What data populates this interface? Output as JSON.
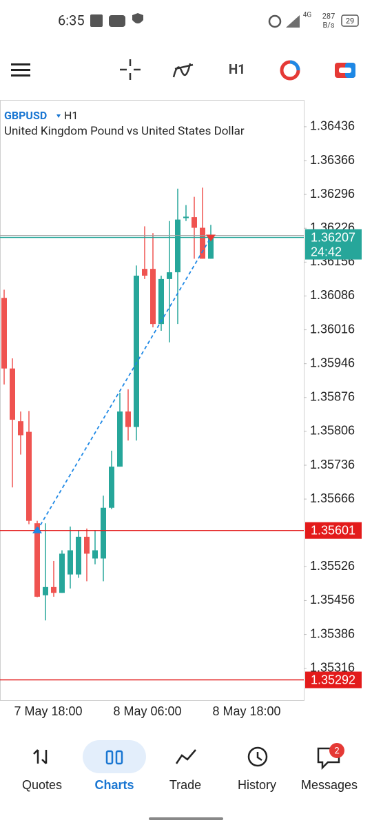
{
  "status_bar": {
    "time": "6:35",
    "network": "4G",
    "speed": "287",
    "speed_unit": "B/s",
    "battery": "29"
  },
  "toolbar": {
    "timeframe": "H1"
  },
  "chart_data": {
    "type": "candlestick",
    "symbol": "GBPUSD",
    "timeframe": "H1",
    "subtitle": "United Kingdom Pound vs United States Dollar",
    "open": [
      1.36082,
      1.35936,
      1.35827,
      1.35805,
      1.35616,
      1.35467,
      1.35484,
      1.35472,
      1.3551,
      1.3551,
      1.35588,
      1.35543,
      1.35543,
      1.35648,
      1.35733,
      1.35847,
      1.35815,
      1.36142,
      1.36142,
      1.36028,
      1.36121,
      1.36135,
      1.36247,
      1.36249,
      1.36227,
      1.36163
    ],
    "high": [
      1.36099,
      1.35957,
      1.35847,
      1.35848,
      1.35621,
      1.35616,
      1.35538,
      1.3556,
      1.35609,
      1.35602,
      1.35605,
      1.35602,
      1.35673,
      1.35766,
      1.35886,
      1.35893,
      1.36149,
      1.3623,
      1.36216,
      1.36128,
      1.36241,
      1.36308,
      1.36274,
      1.36291,
      1.3631,
      1.36233
    ],
    "low": [
      1.35903,
      1.3569,
      1.35758,
      1.35614,
      1.35463,
      1.35415,
      1.35464,
      1.35472,
      1.35481,
      1.35503,
      1.35496,
      1.35531,
      1.35496,
      1.35645,
      1.35733,
      1.35787,
      1.35787,
      1.36121,
      1.36021,
      1.36014,
      1.3599,
      1.36028,
      1.36241,
      1.36163,
      1.36163,
      1.36163
    ],
    "close": [
      1.35936,
      1.3583,
      1.35798,
      1.35621,
      1.35464,
      1.35484,
      1.35472,
      1.35553,
      1.3556,
      1.35588,
      1.35553,
      1.3556,
      1.35648,
      1.35733,
      1.35847,
      1.35815,
      1.36128,
      1.36128,
      1.36028,
      1.36121,
      1.36135,
      1.36244,
      1.3625,
      1.36227,
      1.36163,
      1.36207
    ],
    "x_labels": [
      "7 May 18:00",
      "8 May 06:00",
      "8 May 18:00"
    ],
    "ylim": [
      1.3525,
      1.3649
    ],
    "yticks": [
      1.36436,
      1.36366,
      1.36296,
      1.36226,
      1.36156,
      1.36086,
      1.36016,
      1.35946,
      1.35876,
      1.35806,
      1.35736,
      1.35666,
      1.35526,
      1.35456,
      1.35386,
      1.35316
    ],
    "up_color": "#26a69a",
    "down_color": "#ef5350",
    "bid": 1.36207,
    "bar_countdown": "24:42",
    "levels": [
      {
        "value": 1.35601,
        "color": "#e31b1b"
      },
      {
        "value": 1.35292,
        "color": "#e31b1b"
      }
    ]
  },
  "nav": [
    "Quotes",
    "Charts",
    "Trade",
    "History",
    "Messages"
  ],
  "nav_badge": "2"
}
